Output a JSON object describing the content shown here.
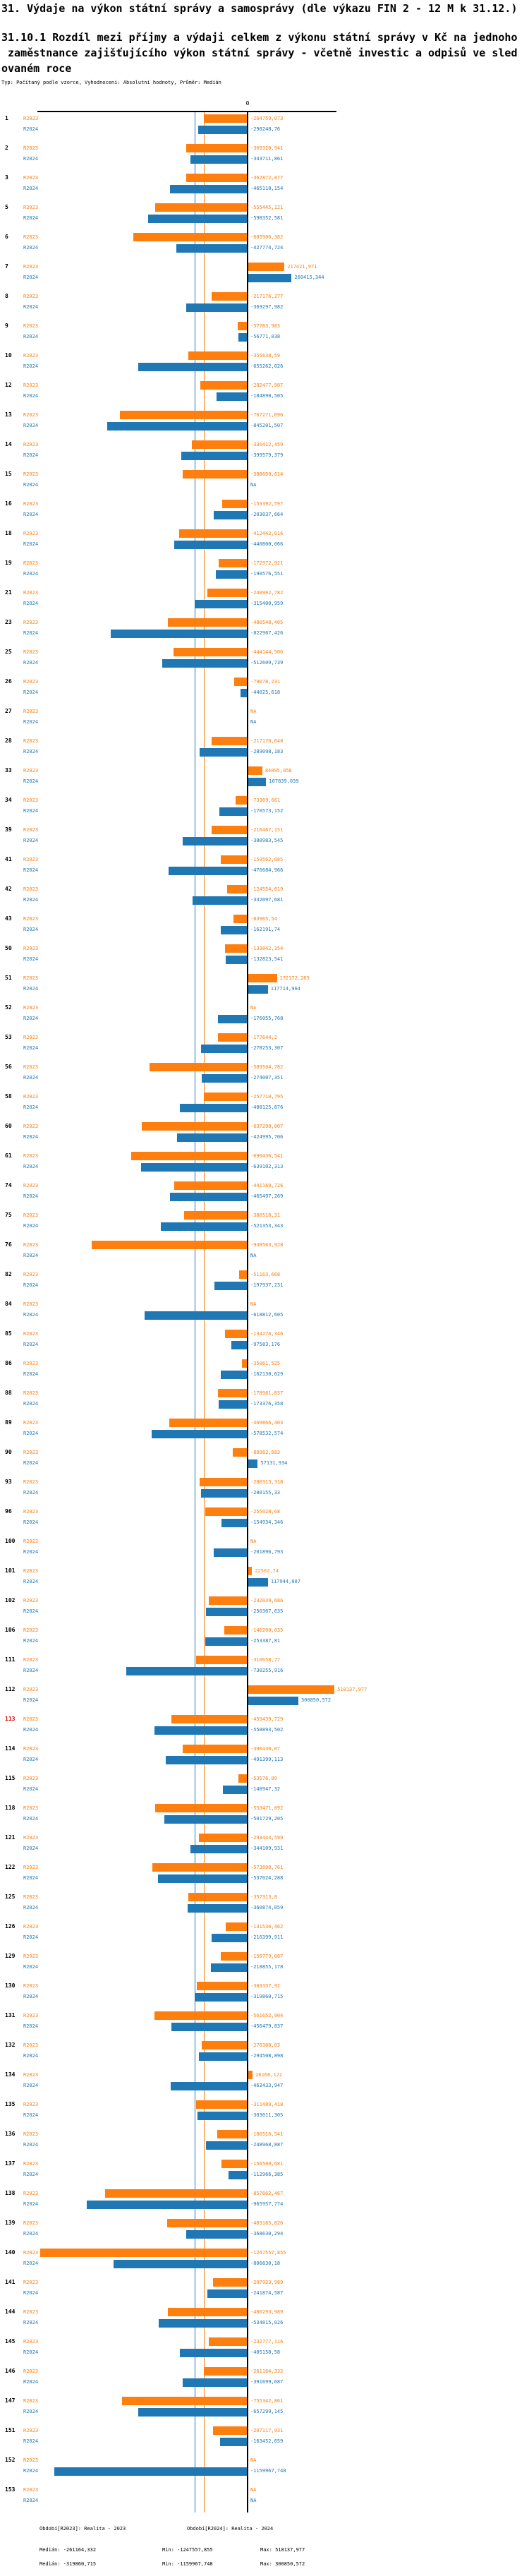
{
  "title": "31. Výdaje na výkon státní správy a samosprávy (dle výkazu FIN 2 - 12 M k 31.12.)",
  "subtitle_lines": [
    "31.10.1 Rozdíl mezi příjmy a výdaji celkem z výkonu státní správy v Kč na jednoho",
    " zaměstnance zajišťujícího výkon státní správy - včetně investic a odpisů ve sled",
    "ovaném roce"
  ],
  "meta_line": "Typ: Počítaný podle vzorce, Vyhodnocení: Absolutní hodnoty, Průměr: Medián",
  "colors": {
    "r2023": "#ff7f0e",
    "r2024": "#1f77b4",
    "highlight_row": "#dd0000",
    "axis": "#000000"
  },
  "chart_data": {
    "type": "bar",
    "orientation": "horizontal-grouped",
    "series_names": [
      "R2023",
      "R2024"
    ],
    "value_unit": "Kč",
    "na_label": "NA",
    "zero_tick_label": "0",
    "median_2023": -261164.332,
    "median_2024": -319860.715,
    "rows": [
      {
        "id": "1",
        "r2023": "-264759,073",
        "r2024": "-298248,76"
      },
      {
        "id": "2",
        "r2023": "-369320,941",
        "r2024": "-343711,861"
      },
      {
        "id": "3",
        "r2023": "-367872,877",
        "r2024": "-465110,154"
      },
      {
        "id": "5",
        "r2023": "-555445,121",
        "r2024": "-598352,581"
      },
      {
        "id": "6",
        "r2023": "-685906,382",
        "r2024": "-427774,724"
      },
      {
        "id": "7",
        "r2023": "217421,971",
        "r2024": "260415,344"
      },
      {
        "id": "8",
        "r2023": "-217176,277",
        "r2024": "-369297,982"
      },
      {
        "id": "9",
        "r2023": "-57783,983",
        "r2024": "-56771,038"
      },
      {
        "id": "10",
        "r2023": "-355638,59",
        "r2024": "-655262,026"
      },
      {
        "id": "12",
        "r2023": "-282477,987",
        "r2024": "-184890,505"
      },
      {
        "id": "13",
        "r2023": "-767271,696",
        "r2024": "-845201,507"
      },
      {
        "id": "14",
        "r2023": "-336412,459",
        "r2024": "-399579,379"
      },
      {
        "id": "15",
        "r2023": "-388650,614",
        "r2024": "NA"
      },
      {
        "id": "16",
        "r2023": "-153392,597",
        "r2024": "-203037,664"
      },
      {
        "id": "18",
        "r2023": "-412442,616",
        "r2024": "-440800,066"
      },
      {
        "id": "19",
        "r2023": "-172972,921",
        "r2024": "-190576,551"
      },
      {
        "id": "21",
        "r2023": "-240992,782",
        "r2024": "-315400,959"
      },
      {
        "id": "23",
        "r2023": "-480548,405",
        "r2024": "-822967,426"
      },
      {
        "id": "25",
        "r2023": "-444144,506",
        "r2024": "-512609,739"
      },
      {
        "id": "26",
        "r2023": "-79078,231",
        "r2024": "-44025,618"
      },
      {
        "id": "27",
        "r2023": "NA",
        "r2024": "NA"
      },
      {
        "id": "28",
        "r2023": "-217170,648",
        "r2024": "-289098,183"
      },
      {
        "id": "33",
        "r2023": "84095,058",
        "r2024": "107839,039"
      },
      {
        "id": "34",
        "r2023": "-73369,661",
        "r2024": "-170573,152"
      },
      {
        "id": "39",
        "r2023": "-216467,151",
        "r2024": "-388983,545"
      },
      {
        "id": "41",
        "r2023": "-159562,085",
        "r2024": "-476684,966"
      },
      {
        "id": "42",
        "r2023": "-124554,619",
        "r2024": "-332097,681"
      },
      {
        "id": "43",
        "r2023": "-83965,54",
        "r2024": "-162191,74"
      },
      {
        "id": "50",
        "r2023": "-133842,354",
        "r2024": "-132823,541"
      },
      {
        "id": "51",
        "r2023": "172172,285",
        "r2024": "117714,964"
      },
      {
        "id": "52",
        "r2023": "NA",
        "r2024": "-176055,768"
      },
      {
        "id": "53",
        "r2023": "-177644,2",
        "r2024": "-278253,307"
      },
      {
        "id": "56",
        "r2023": "-589504,782",
        "r2024": "-274007,351"
      },
      {
        "id": "58",
        "r2023": "-257710,795",
        "r2024": "-408125,876"
      },
      {
        "id": "60",
        "r2023": "-637298,807",
        "r2024": "-424995,706"
      },
      {
        "id": "61",
        "r2023": "-699436,541",
        "r2024": "-639102,313"
      },
      {
        "id": "74",
        "r2023": "-441169,726",
        "r2024": "-465497,269"
      },
      {
        "id": "75",
        "r2023": "-380518,31",
        "r2024": "-521353,343"
      },
      {
        "id": "76",
        "r2023": "-938563,928",
        "r2024": "NA"
      },
      {
        "id": "82",
        "r2023": "-51163,668",
        "r2024": "-197937,231"
      },
      {
        "id": "84",
        "r2023": "NA",
        "r2024": "-618812,605"
      },
      {
        "id": "85",
        "r2023": "-134276,346",
        "r2024": "-97583,176"
      },
      {
        "id": "86",
        "r2023": "-35061,525",
        "r2024": "-162130,629"
      },
      {
        "id": "88",
        "r2023": "-178981,837",
        "r2024": "-173376,358"
      },
      {
        "id": "89",
        "r2023": "-469866,403",
        "r2024": "-578532,574"
      },
      {
        "id": "90",
        "r2023": "-88982,683",
        "r2024": "57131,934"
      },
      {
        "id": "93",
        "r2023": "-286913,318",
        "r2024": "-280155,33"
      },
      {
        "id": "96",
        "r2023": "-255028,68",
        "r2024": "-154934,346"
      },
      {
        "id": "100",
        "r2023": "NA",
        "r2024": "-201896,793"
      },
      {
        "id": "101",
        "r2023": "22562,74",
        "r2024": "117944,007"
      },
      {
        "id": "102",
        "r2023": "-232039,686",
        "r2024": "-250367,635"
      },
      {
        "id": "106",
        "r2023": "-140200,635",
        "r2024": "-253387,81"
      },
      {
        "id": "111",
        "r2023": "-310658,77",
        "r2024": "-730255,916"
      },
      {
        "id": "112",
        "r2023": "518137,977",
        "r2024": "300850,572"
      },
      {
        "id": "113",
        "r2023": "-459439,729",
        "r2024": "-558893,502",
        "highlight": true
      },
      {
        "id": "114",
        "r2023": "-390430,07",
        "r2024": "-491399,113"
      },
      {
        "id": "115",
        "r2023": "-53576,89",
        "r2024": "-148947,32"
      },
      {
        "id": "118",
        "r2023": "-553471,092",
        "r2024": "-501729,205"
      },
      {
        "id": "121",
        "r2023": "-293444,599",
        "r2024": "-344109,931"
      },
      {
        "id": "122",
        "r2023": "-573800,761",
        "r2024": "-537024,288"
      },
      {
        "id": "125",
        "r2023": "-357313,8",
        "r2024": "-360874,059"
      },
      {
        "id": "126",
        "r2023": "-131536,462",
        "r2024": "-216399,911"
      },
      {
        "id": "129",
        "r2023": "-159779,087",
        "r2024": "-218855,178"
      },
      {
        "id": "130",
        "r2023": "-303337,92",
        "r2024": "-319860,715"
      },
      {
        "id": "131",
        "r2023": "-561652,904",
        "r2024": "-456479,837"
      },
      {
        "id": "132",
        "r2023": "-276388,03",
        "r2024": "-294508,898"
      },
      {
        "id": "134",
        "r2023": "26168,122",
        "r2024": "-462433,947"
      },
      {
        "id": "135",
        "r2023": "-311489,418",
        "r2024": "-303011,305"
      },
      {
        "id": "136",
        "r2023": "-180516,541",
        "r2024": "-248968,887"
      },
      {
        "id": "137",
        "r2023": "-156500,681",
        "r2024": "-112966,385"
      },
      {
        "id": "138",
        "r2023": "-857862,467",
        "r2024": "-965957,774"
      },
      {
        "id": "139",
        "r2023": "-483185,826",
        "r2024": "-368630,294"
      },
      {
        "id": "140",
        "r2023": "-1247557,855",
        "r2024": "-806830,18"
      },
      {
        "id": "141",
        "r2023": "-207923,989",
        "r2024": "-241874,587"
      },
      {
        "id": "144",
        "r2023": "-480293,989",
        "r2024": "-534815,026"
      },
      {
        "id": "145",
        "r2023": "-232777,116",
        "r2024": "-405158,58"
      },
      {
        "id": "146",
        "r2023": "-261164,332",
        "r2024": "-391699,687"
      },
      {
        "id": "147",
        "r2023": "-755342,861",
        "r2024": "-657299,145"
      },
      {
        "id": "151",
        "r2023": "-207117,931",
        "r2024": "-163452,659"
      },
      {
        "id": "152",
        "r2023": "NA",
        "r2024": "-1159967,748"
      },
      {
        "id": "153",
        "r2023": "NA",
        "r2024": "NA"
      }
    ]
  },
  "footer": {
    "period_2023": "Období[R2023]: Realita - 2023",
    "period_2024": "Období[R2024]: Realita - 2024",
    "stats_2023": {
      "median": "Medián: -261164,332",
      "min": "Min: -1247557,855",
      "max": "Max: 518137,977"
    },
    "stats_2024": {
      "median": "Medián: -319860,715",
      "min": "Min: -1159967,748",
      "max": "Max: 300850,572"
    }
  }
}
